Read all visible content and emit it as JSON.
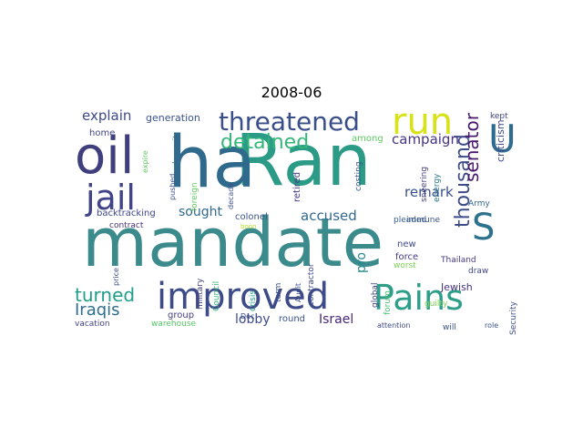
{
  "title": "2008-06",
  "words": [
    {
      "text": "mandate",
      "color": "#3b8b8c"
    },
    {
      "text": "Ran",
      "color": "#2b9a86"
    },
    {
      "text": "ha",
      "color": "#2f6a8d"
    },
    {
      "text": "oil",
      "color": "#3f3f7e"
    },
    {
      "text": "improved",
      "color": "#3e4b89"
    },
    {
      "text": "Pains",
      "color": "#2f9e89"
    },
    {
      "text": "run",
      "color": "#d8e219"
    },
    {
      "text": "threatened",
      "color": "#3a4f8a"
    },
    {
      "text": "jail",
      "color": "#414487"
    },
    {
      "text": "detained",
      "color": "#35b779"
    },
    {
      "text": "U",
      "color": "#2f6b8e"
    },
    {
      "text": "S",
      "color": "#2c728e"
    },
    {
      "text": "thousand",
      "color": "#3d4d8a"
    },
    {
      "text": "senator",
      "color": "#48186a"
    },
    {
      "text": "turned",
      "color": "#1f9e89"
    },
    {
      "text": "Iraqis",
      "color": "#2e6d8e"
    },
    {
      "text": "explain",
      "color": "#3e4989"
    },
    {
      "text": "campaign",
      "color": "#46337e"
    },
    {
      "text": "remark",
      "color": "#3b518b"
    },
    {
      "text": "accused",
      "color": "#31688e"
    },
    {
      "text": "sought",
      "color": "#31688e"
    },
    {
      "text": "Israel",
      "color": "#482878"
    },
    {
      "text": "lobby",
      "color": "#3e4c8a"
    },
    {
      "text": "pro",
      "color": "#24878e"
    },
    {
      "text": "generation",
      "color": "#3b528b"
    },
    {
      "text": "lawsuit",
      "color": "#31688e"
    },
    {
      "text": "home",
      "color": "#404688"
    },
    {
      "text": "backtracking",
      "color": "#3f4788"
    },
    {
      "text": "colonel",
      "color": "#3b528b"
    },
    {
      "text": "retired",
      "color": "#443a83"
    },
    {
      "text": "among",
      "color": "#5ec962"
    },
    {
      "text": "costing",
      "color": "#38588c"
    },
    {
      "text": "criticism",
      "color": "#3e4a89"
    },
    {
      "text": "kept",
      "color": "#414487"
    },
    {
      "text": "energy",
      "color": "#29798e"
    },
    {
      "text": "sneering",
      "color": "#453882"
    },
    {
      "text": "Army",
      "color": "#31688e"
    },
    {
      "text": "immune",
      "color": "#3b528b"
    },
    {
      "text": "pleaded",
      "color": "#365c8d"
    },
    {
      "text": "Audit",
      "color": "#3b528b"
    },
    {
      "text": "contract",
      "color": "#46317e"
    },
    {
      "text": "group",
      "color": "#433e85"
    },
    {
      "text": "round",
      "color": "#3c4f8a"
    },
    {
      "text": "military",
      "color": "#424086"
    },
    {
      "text": "Council",
      "color": "#35b779"
    },
    {
      "text": "crisis",
      "color": "#1fa187"
    },
    {
      "text": "term",
      "color": "#3c508b"
    },
    {
      "text": "contractor",
      "color": "#3e4989"
    },
    {
      "text": "global",
      "color": "#414287"
    },
    {
      "text": "forum",
      "color": "#48c16e"
    },
    {
      "text": "new",
      "color": "#3e4a89"
    },
    {
      "text": "force",
      "color": "#443983"
    },
    {
      "text": "worst",
      "color": "#7ad151"
    },
    {
      "text": "guilty",
      "color": "#7ad151"
    },
    {
      "text": "Jewish",
      "color": "#46327e"
    },
    {
      "text": "Thailand",
      "color": "#443983"
    },
    {
      "text": "draw",
      "color": "#3f4788"
    },
    {
      "text": "Security",
      "color": "#3b528b"
    },
    {
      "text": "role",
      "color": "#3b528b"
    },
    {
      "text": "will",
      "color": "#3b528b"
    },
    {
      "text": "attention",
      "color": "#3e4989"
    },
    {
      "text": "Dec",
      "color": "#3e4989"
    },
    {
      "text": "warehouse",
      "color": "#56c667"
    },
    {
      "text": "vacation",
      "color": "#414487"
    },
    {
      "text": "price",
      "color": "#3e4989"
    },
    {
      "text": "expire",
      "color": "#5ec962"
    },
    {
      "text": "pushed",
      "color": "#3b528b"
    },
    {
      "text": "foreign",
      "color": "#5ec962"
    },
    {
      "text": "decade",
      "color": "#3b528b"
    },
    {
      "text": "boon",
      "color": "#b5de2b"
    }
  ]
}
